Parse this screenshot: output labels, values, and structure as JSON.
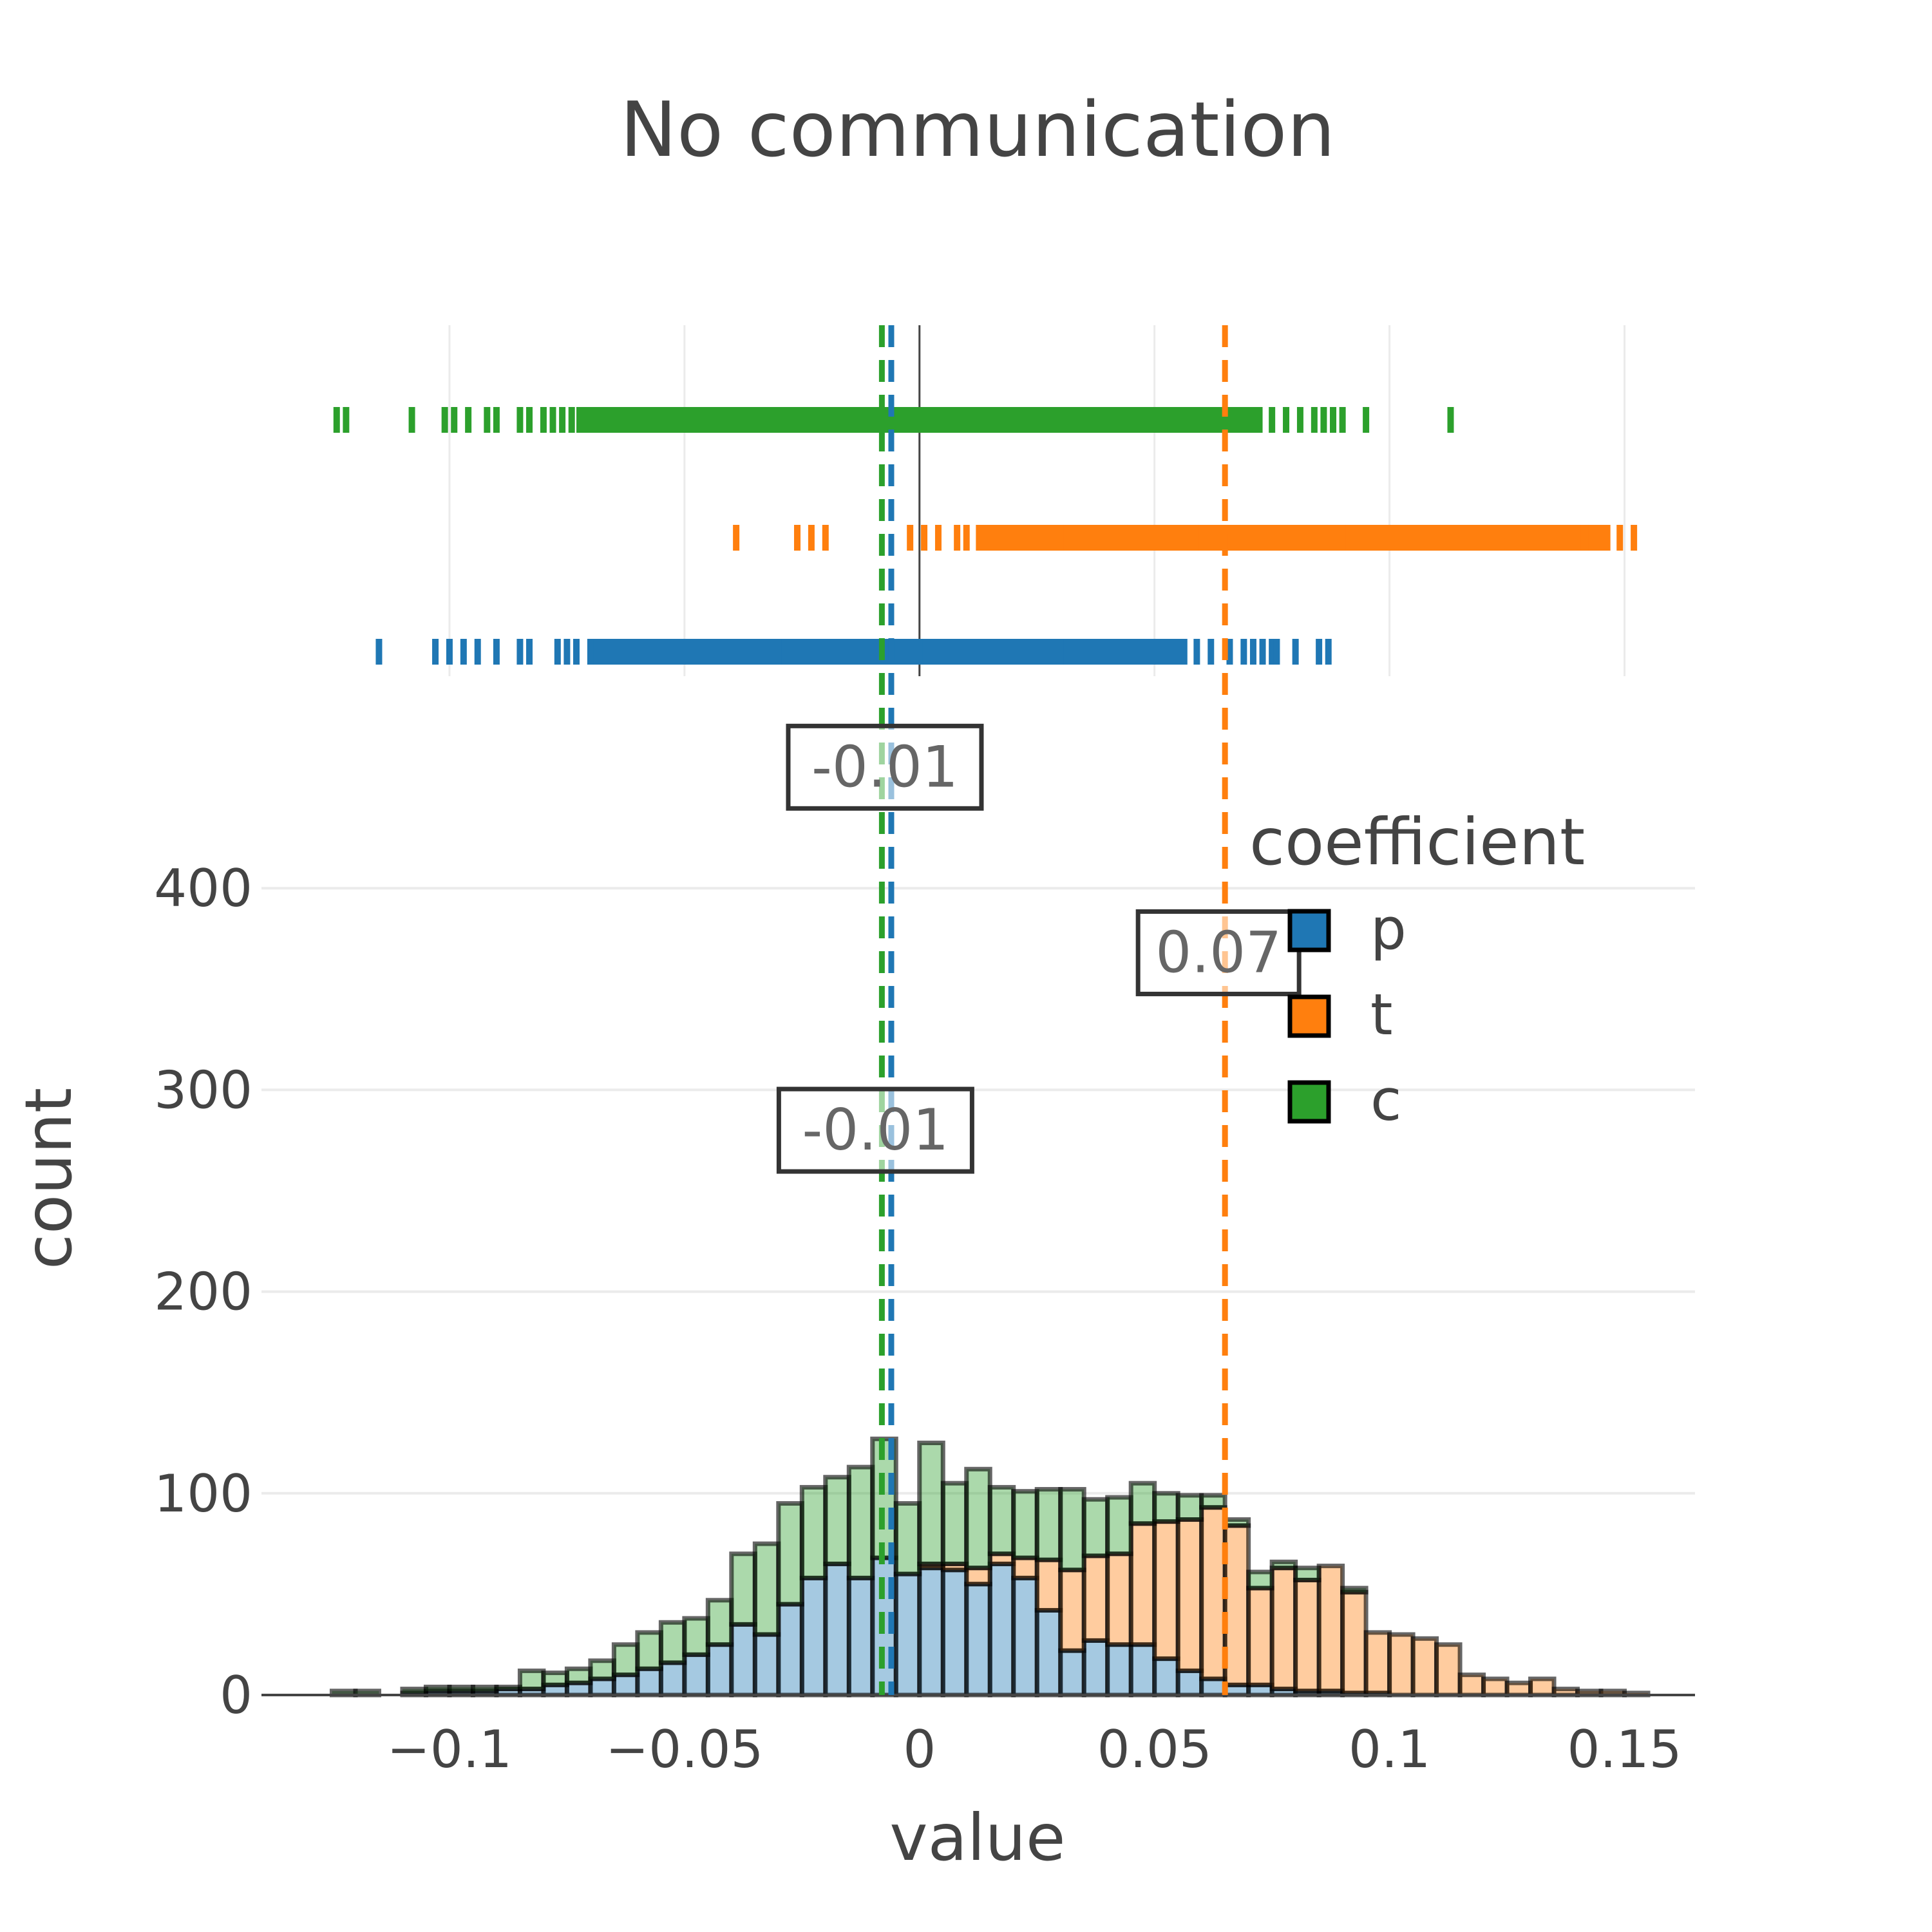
{
  "chart_data": {
    "type": "bar",
    "title": "No communication",
    "xlabel": "value",
    "ylabel": "count",
    "legend_title": "coefficient",
    "legend_position": "top-right",
    "barmode": "stack",
    "grid": true,
    "xlim": [
      -0.14,
      0.165
    ],
    "ylim": [
      0,
      470
    ],
    "x_ticks": [
      -0.1,
      -0.05,
      0,
      0.05,
      0.1,
      0.15
    ],
    "x_tick_labels": [
      "−0.1",
      "−0.05",
      "0",
      "0.05",
      "0.1",
      "0.15"
    ],
    "y_ticks": [
      0,
      100,
      200,
      300,
      400
    ],
    "y_tick_labels": [
      "0",
      "100",
      "200",
      "300",
      "400"
    ],
    "bin_starts": [
      -0.125,
      -0.12,
      -0.115,
      -0.11,
      -0.105,
      -0.1,
      -0.095,
      -0.09,
      -0.085,
      -0.08,
      -0.075,
      -0.07,
      -0.065,
      -0.06,
      -0.055,
      -0.05,
      -0.045,
      -0.04,
      -0.035,
      -0.03,
      -0.025,
      -0.02,
      -0.015,
      -0.01,
      -0.005,
      0,
      0.005,
      0.01,
      0.015,
      0.02,
      0.025,
      0.03,
      0.035,
      0.04,
      0.045,
      0.05,
      0.055,
      0.06,
      0.065,
      0.07,
      0.075,
      0.08,
      0.085,
      0.09,
      0.095,
      0.1,
      0.105,
      0.11,
      0.115,
      0.12,
      0.125,
      0.13,
      0.135,
      0.14,
      0.145,
      0.15
    ],
    "bin_width": 0.005,
    "series": [
      {
        "name": "p",
        "color": "#1f77b4",
        "values": [
          0,
          0,
          0,
          1,
          2,
          2,
          2,
          3,
          3,
          5,
          6,
          8,
          10,
          13,
          16,
          20,
          25,
          35,
          30,
          45,
          58,
          65,
          58,
          68,
          60,
          63,
          62,
          55,
          65,
          58,
          42,
          22,
          27,
          25,
          25,
          18,
          12,
          8,
          5,
          5,
          3,
          2,
          2,
          1,
          1,
          0,
          0,
          0,
          0,
          0,
          0,
          0,
          0,
          0,
          0,
          0
        ]
      },
      {
        "name": "t",
        "color": "#ff7f0e",
        "values": [
          0,
          0,
          0,
          0,
          0,
          0,
          0,
          0,
          0,
          0,
          0,
          0,
          0,
          0,
          0,
          0,
          0,
          0,
          0,
          0,
          0,
          0,
          0,
          0,
          0,
          2,
          3,
          8,
          5,
          10,
          25,
          40,
          42,
          45,
          60,
          68,
          75,
          85,
          79,
          48,
          60,
          55,
          62,
          50,
          30,
          30,
          28,
          25,
          10,
          8,
          6,
          8,
          3,
          2,
          2,
          1
        ]
      },
      {
        "name": "c",
        "color": "#2ca02c",
        "values": [
          2,
          2,
          0,
          2,
          2,
          2,
          2,
          1,
          9,
          6,
          7,
          9,
          15,
          18,
          20,
          18,
          22,
          35,
          45,
          50,
          45,
          43,
          55,
          59,
          35,
          60,
          40,
          49,
          33,
          33,
          35,
          40,
          28,
          28,
          20,
          14,
          12,
          6,
          3,
          8,
          3,
          6,
          0,
          2,
          0,
          0,
          0,
          0,
          0,
          0,
          0,
          0,
          0,
          0,
          0,
          0
        ]
      }
    ],
    "rug": [
      {
        "name": "c",
        "color": "#2ca02c",
        "dense_range": [
          -0.073,
          0.073
        ],
        "ticks": [
          -0.124,
          -0.122,
          -0.108,
          -0.101,
          -0.099,
          -0.096,
          -0.092,
          -0.09,
          -0.085,
          -0.083,
          -0.08,
          -0.078,
          -0.076,
          -0.074,
          -0.05,
          -0.02,
          0.01,
          0.04,
          0.058,
          0.061,
          0.064,
          0.067,
          0.07,
          0.075,
          0.078,
          0.081,
          0.084,
          0.086,
          0.088,
          0.09,
          0.095,
          0.113
        ]
      },
      {
        "name": "t",
        "color": "#ff7f0e",
        "dense_range": [
          0.012,
          0.147
        ],
        "ticks": [
          -0.039,
          -0.026,
          -0.023,
          -0.02,
          -0.002,
          0.001,
          0.004,
          0.008,
          0.01,
          0.03,
          0.06,
          0.09,
          0.115,
          0.125,
          0.14,
          0.143,
          0.149,
          0.152
        ]
      },
      {
        "name": "p",
        "color": "#1f77b4",
        "dense_range": [
          -0.07,
          0.057
        ],
        "ticks": [
          -0.115,
          -0.103,
          -0.1,
          -0.097,
          -0.094,
          -0.09,
          -0.085,
          -0.083,
          -0.077,
          -0.075,
          -0.073,
          -0.07,
          -0.03,
          0,
          0.03,
          0.059,
          0.062,
          0.066,
          0.069,
          0.071,
          0.073,
          0.075,
          0.076,
          0.08,
          0.085,
          0.087
        ]
      }
    ],
    "mean_lines": [
      {
        "name": "p",
        "color": "#1f77b4",
        "x": -0.006,
        "label": "-0.01",
        "label_y": 460
      },
      {
        "name": "t",
        "color": "#ff7f0e",
        "x": 0.065,
        "label": "0.07",
        "label_y": 368
      },
      {
        "name": "c",
        "color": "#2ca02c",
        "x": -0.008,
        "label": "-0.01",
        "label_y": 280
      }
    ]
  }
}
